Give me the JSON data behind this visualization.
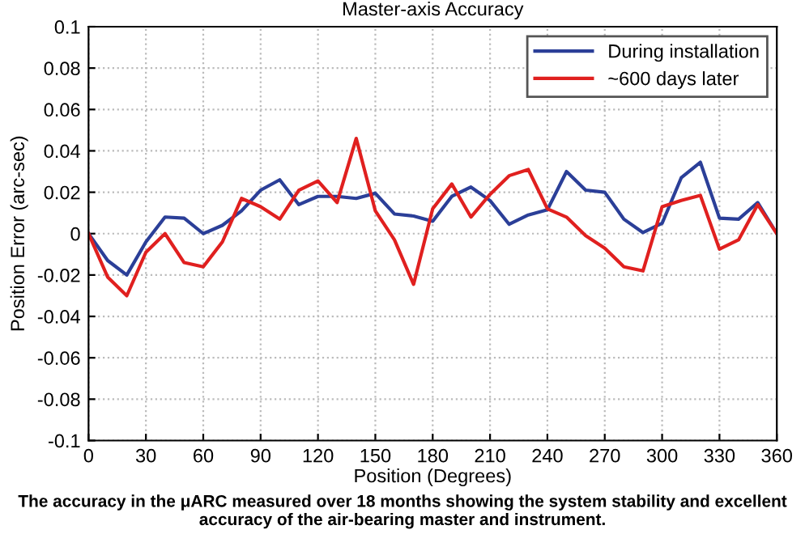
{
  "chart_data": {
    "type": "line",
    "title": "Master-axis Accuracy",
    "xlabel": "Position (Degrees)",
    "ylabel": "Position Error (arc-sec)",
    "x": [
      0,
      10,
      20,
      30,
      40,
      50,
      60,
      70,
      80,
      90,
      100,
      110,
      120,
      130,
      140,
      150,
      160,
      170,
      180,
      190,
      200,
      210,
      220,
      230,
      240,
      250,
      260,
      270,
      280,
      290,
      300,
      310,
      320,
      330,
      340,
      350,
      360
    ],
    "series": [
      {
        "name": "During installation",
        "color": "#2b3f98",
        "values": [
          0,
          -0.013,
          -0.02,
          -0.004,
          0.008,
          0.0075,
          0,
          0.004,
          0.011,
          0.021,
          0.026,
          0.014,
          0.018,
          0.018,
          0.017,
          0.0195,
          0.0095,
          0.0085,
          0.006,
          0.018,
          0.0225,
          0.016,
          0.0045,
          0.009,
          0.0115,
          0.03,
          0.021,
          0.02,
          0.007,
          0.0005,
          0.005,
          0.027,
          0.0345,
          0.0075,
          0.007,
          0.015,
          0
        ]
      },
      {
        "name": "~600 days later",
        "color": "#e0201f",
        "values": [
          0,
          -0.021,
          -0.03,
          -0.009,
          0,
          -0.014,
          -0.016,
          -0.004,
          0.017,
          0.013,
          0.007,
          0.021,
          0.0255,
          0.015,
          0.046,
          0.011,
          -0.003,
          -0.0245,
          0.012,
          0.024,
          0.008,
          0.019,
          0.028,
          0.031,
          0.012,
          0.008,
          -0.001,
          -0.007,
          -0.016,
          -0.018,
          0.013,
          0.016,
          0.0185,
          -0.0075,
          -0.003,
          0.014,
          0
        ]
      }
    ],
    "xlim": [
      0,
      360
    ],
    "ylim": [
      -0.1,
      0.1
    ],
    "xticks": [
      0,
      30,
      60,
      90,
      120,
      150,
      180,
      210,
      240,
      270,
      300,
      330,
      360
    ],
    "yticks": [
      -0.1,
      -0.08,
      -0.06,
      -0.04,
      -0.02,
      0,
      0.02,
      0.04,
      0.06,
      0.08,
      0.1
    ],
    "grid": true,
    "legend": "top right",
    "line_style": "solid",
    "marker": "none",
    "annotations": [
      "The accuracy in the μARC measured over 18 months showing the system stability and excellent accuracy of the air-bearing master and instrument."
    ]
  }
}
